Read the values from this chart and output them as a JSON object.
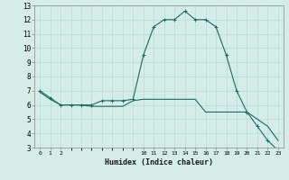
{
  "xlabel": "Humidex (Indice chaleur)",
  "bg_color": "#d5ede9",
  "grid_color": "#b8d8d4",
  "line_color": "#1a6b64",
  "hours": [
    0,
    1,
    2,
    3,
    4,
    5,
    6,
    7,
    8,
    9,
    10,
    11,
    12,
    13,
    14,
    15,
    16,
    17,
    18,
    19,
    20,
    21,
    22,
    23
  ],
  "series1": [
    7.0,
    6.5,
    6.0,
    6.0,
    6.0,
    6.0,
    6.3,
    6.3,
    6.3,
    6.4,
    9.5,
    11.5,
    12.0,
    12.0,
    12.6,
    12.0,
    12.0,
    11.5,
    9.5,
    7.0,
    5.5,
    4.5,
    3.5,
    2.8
  ],
  "series2": [
    6.9,
    6.4,
    6.0,
    6.0,
    6.0,
    5.9,
    5.9,
    5.9,
    5.9,
    6.3,
    6.4,
    6.4,
    6.4,
    6.4,
    6.4,
    6.4,
    5.5,
    5.5,
    5.5,
    5.5,
    5.5,
    5.0,
    4.5,
    3.5
  ],
  "ylim": [
    3,
    13
  ],
  "yticks": [
    3,
    4,
    5,
    6,
    7,
    8,
    9,
    10,
    11,
    12,
    13
  ],
  "xtick_positions": [
    0,
    1,
    2,
    10,
    11,
    12,
    13,
    14,
    15,
    16,
    17,
    18,
    19,
    20,
    21,
    22,
    23
  ],
  "xtick_labels": [
    "0",
    "1",
    "2",
    "10",
    "11",
    "12",
    "13",
    "14",
    "15",
    "16",
    "17",
    "18",
    "19",
    "20",
    "21",
    "22",
    "23"
  ]
}
